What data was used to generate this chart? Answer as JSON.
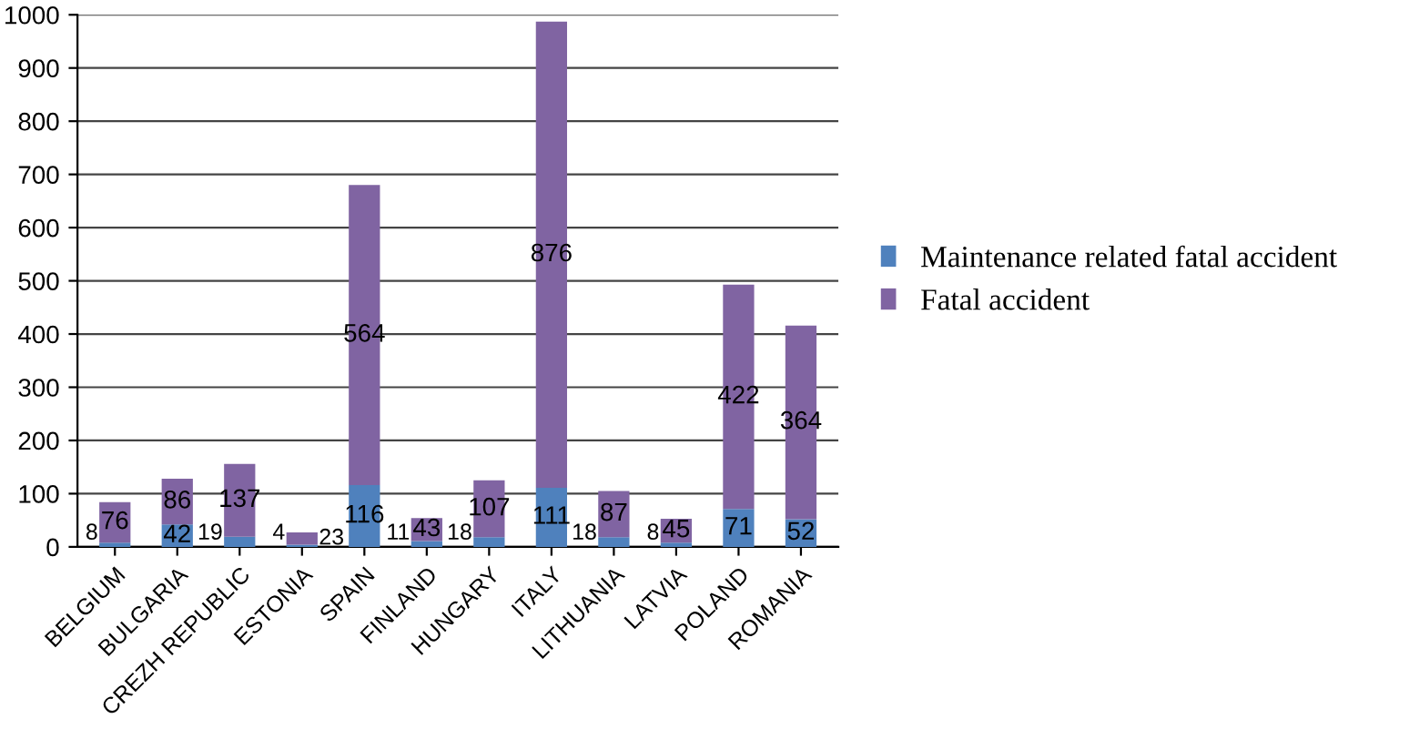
{
  "chart_data": {
    "type": "bar",
    "stacked": true,
    "categories": [
      "BELGIUM",
      "BULGARIA",
      "CREZH REPUBLIC",
      "ESTONIA",
      "SPAIN",
      "FINLAND",
      "HUNGARY",
      "ITALY",
      "LITHUANIA",
      "LATVIA",
      "POLAND",
      "ROMANIA"
    ],
    "series": [
      {
        "name": "Maintenance related fatal accident",
        "color": "#4f81bd",
        "values": [
          8,
          42,
          19,
          4,
          116,
          11,
          18,
          111,
          18,
          8,
          71,
          52
        ]
      },
      {
        "name": "Fatal accident",
        "color": "#8064a2",
        "values": [
          76,
          86,
          137,
          23,
          564,
          43,
          107,
          876,
          87,
          45,
          422,
          364
        ]
      }
    ],
    "ylim": [
      0,
      1000
    ],
    "yticks": [
      0,
      100,
      200,
      300,
      400,
      500,
      600,
      700,
      800,
      900,
      1000
    ],
    "grid": "y",
    "legend": "right",
    "data_labels": true
  }
}
